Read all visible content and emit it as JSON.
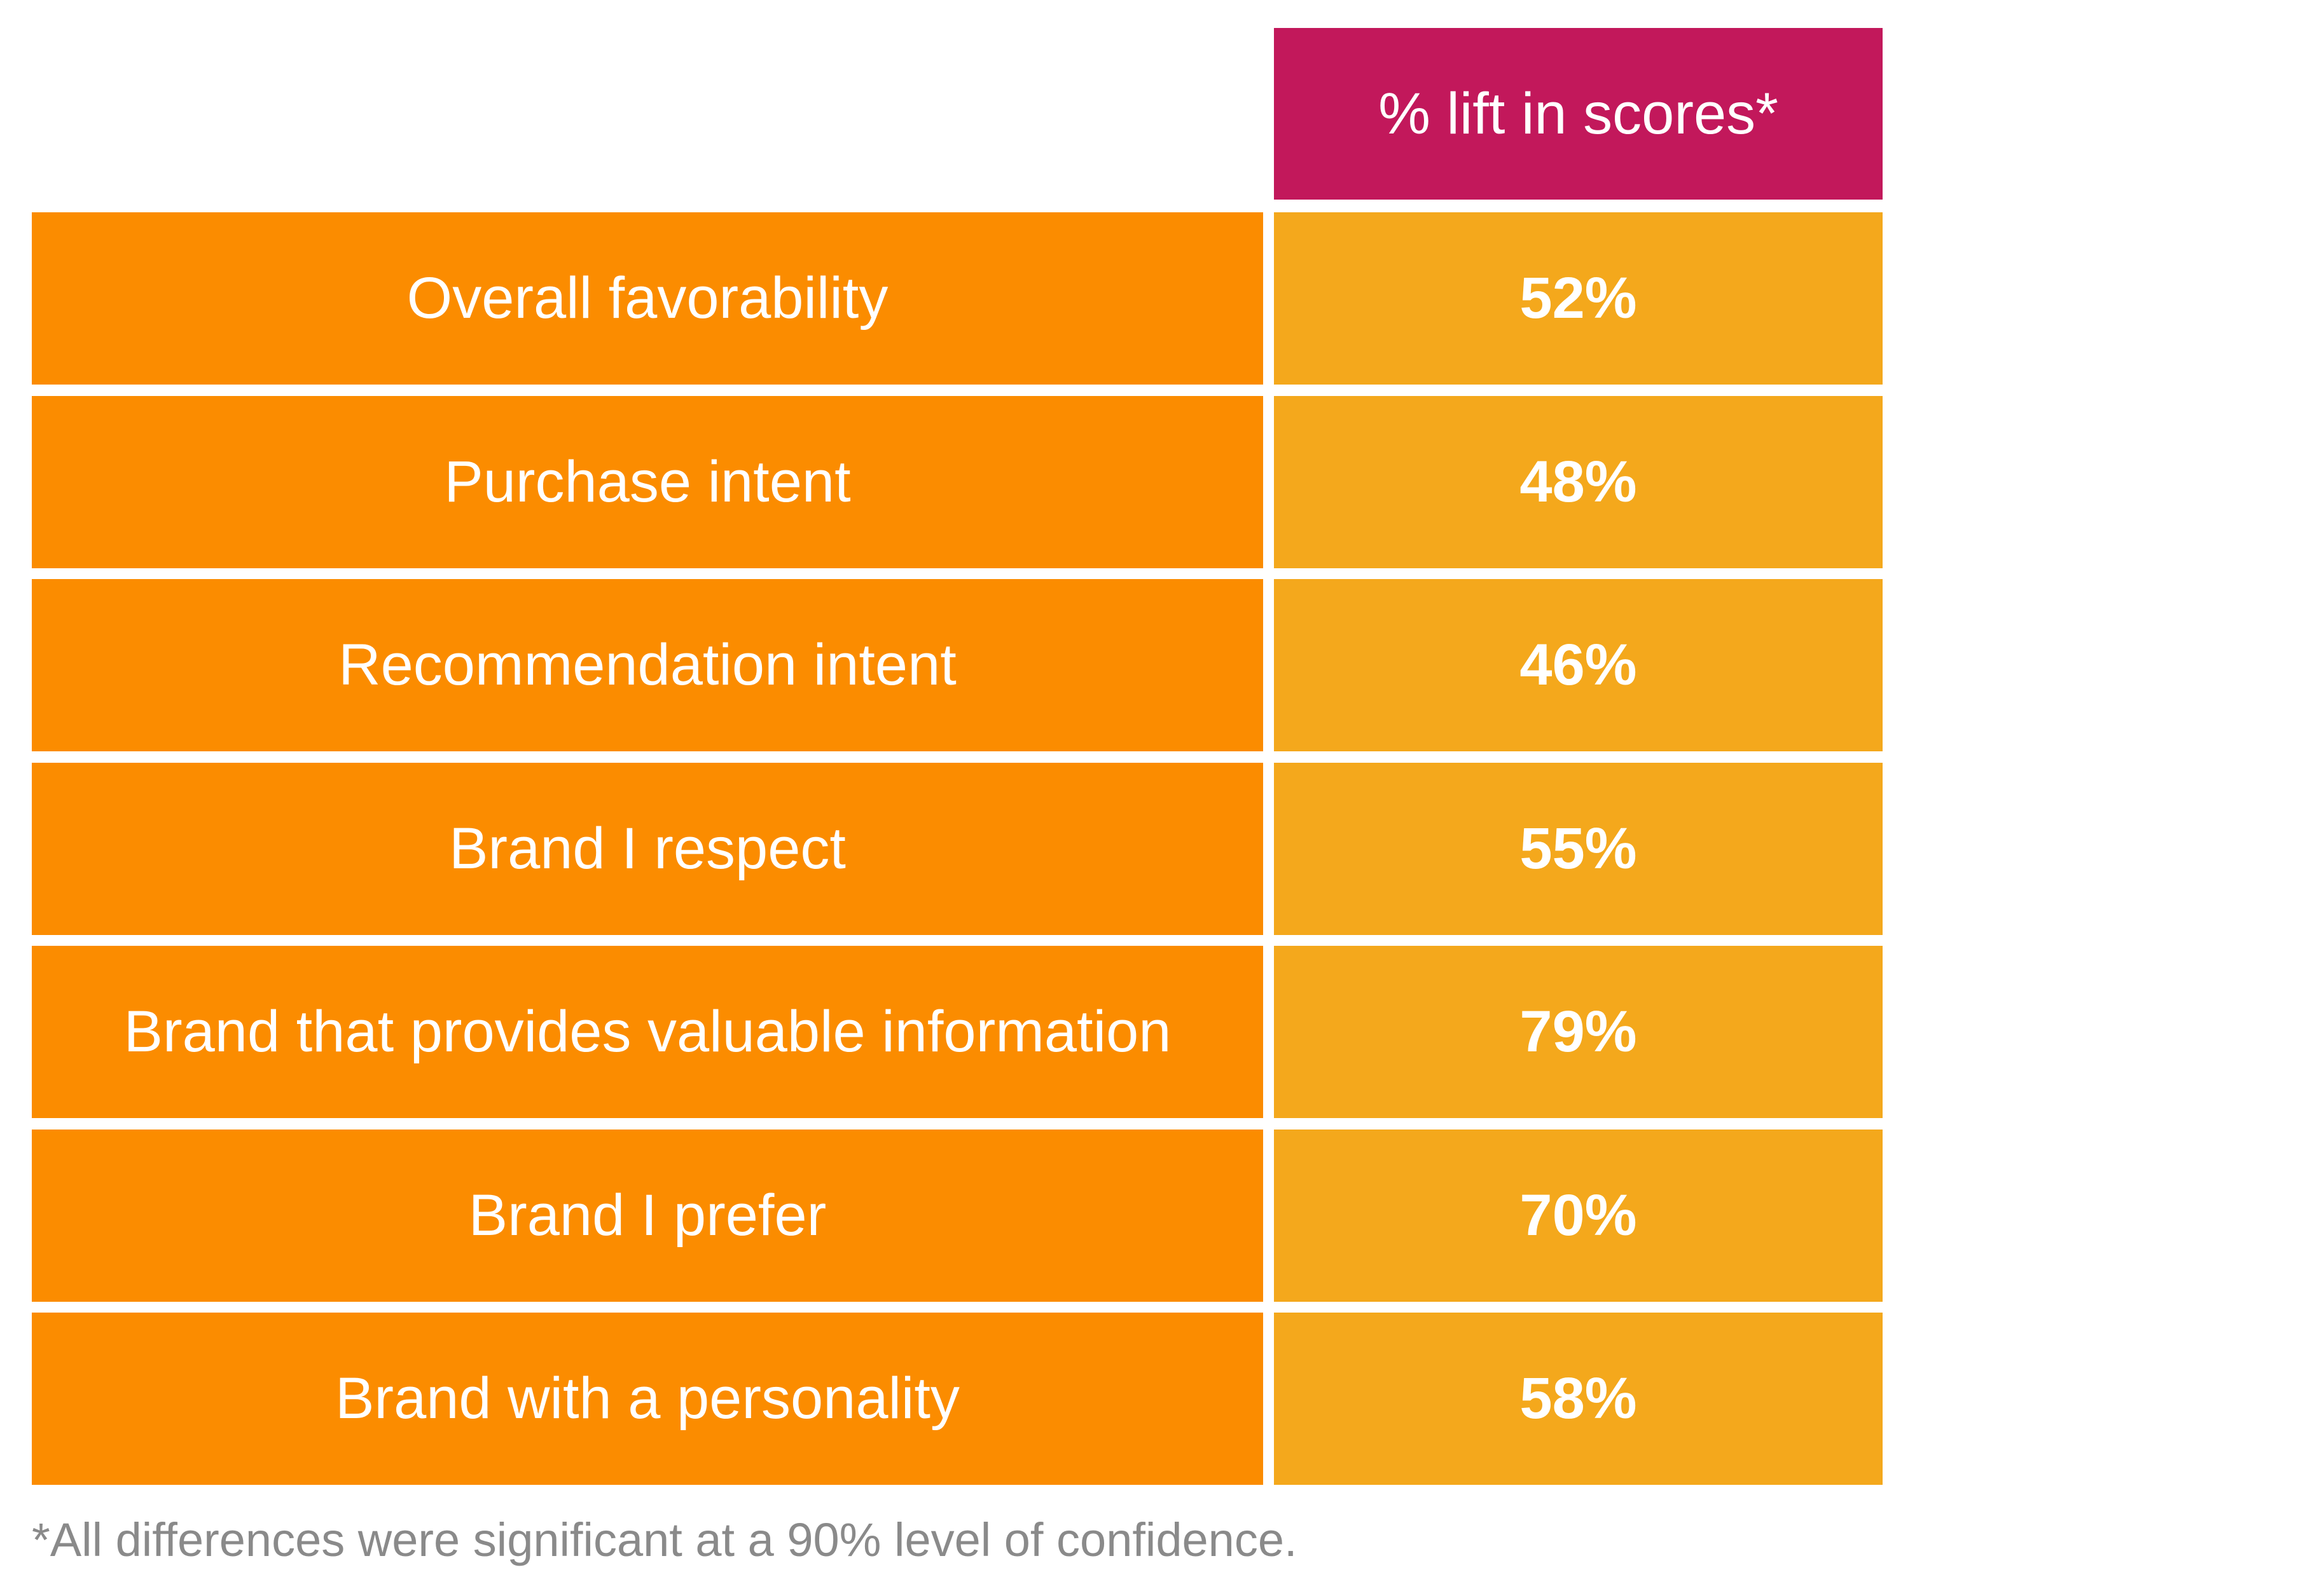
{
  "chart_data": {
    "type": "table",
    "header": "% lift in scores*",
    "rows": [
      {
        "label": "Overall favorability",
        "value": "52%",
        "number": 52
      },
      {
        "label": "Purchase intent",
        "value": "48%",
        "number": 48
      },
      {
        "label": "Recommendation intent",
        "value": "46%",
        "number": 46
      },
      {
        "label": "Brand I respect",
        "value": "55%",
        "number": 55
      },
      {
        "label": "Brand that provides valuable information",
        "value": "79%",
        "number": 79
      },
      {
        "label": "Brand I prefer",
        "value": "70%",
        "number": 70
      },
      {
        "label": "Brand with a personality",
        "value": "58%",
        "number": 58
      }
    ],
    "footnote": "*All differences were significant at a 90% level of confidence.",
    "colors": {
      "header": "#C2185B",
      "label_cell": "#FB8C00",
      "value_cell": "#F4A81C",
      "text": "#FFFFFF",
      "footnote": "#8A8A8A"
    }
  }
}
